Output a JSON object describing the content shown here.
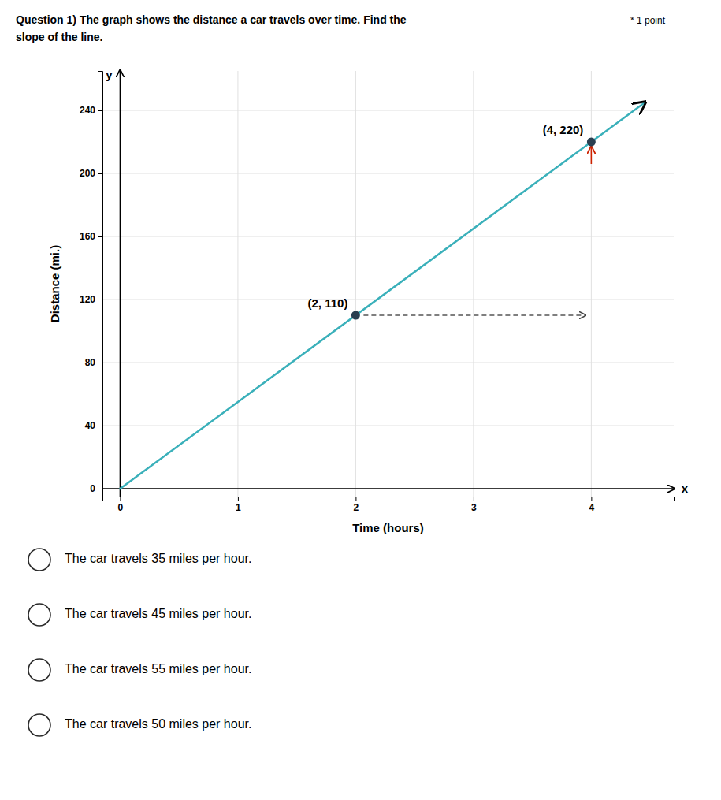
{
  "chart_data": {
    "type": "line",
    "title": "Question 1) The graph shows the distance a car travels over time. Find the",
    "subtitle": "slope of the line.",
    "annotations": [
      "* 1 point"
    ],
    "xlabel": "Time (hours)",
    "ylabel": "Distance (mi.)",
    "x_axis_letter": "x",
    "y_axis_letter": "y",
    "xlim": [
      -0.15,
      4.7
    ],
    "ylim": [
      -5,
      265
    ],
    "xticks": [
      0,
      1,
      2,
      3,
      4
    ],
    "yticks": [
      0,
      40,
      80,
      120,
      160,
      200,
      240
    ],
    "grid": true,
    "data_labels": true,
    "series": [
      {
        "type": "line",
        "color": "#3ab0ba",
        "x": [
          0,
          4.45
        ],
        "values": [
          0,
          244.75
        ]
      },
      {
        "type": "scatter",
        "color": "#2a3f50",
        "marker": "circle",
        "x": [
          2,
          4
        ],
        "values": [
          110,
          220
        ],
        "value_labels": [
          "(2, 110)",
          "(4, 220)"
        ]
      }
    ],
    "choices": [
      "The car travels 35 miles per hour.",
      "The car travels 45 miles per hour.",
      "The car travels 55 miles per hour.",
      "The car travels 50 miles per hour."
    ]
  }
}
